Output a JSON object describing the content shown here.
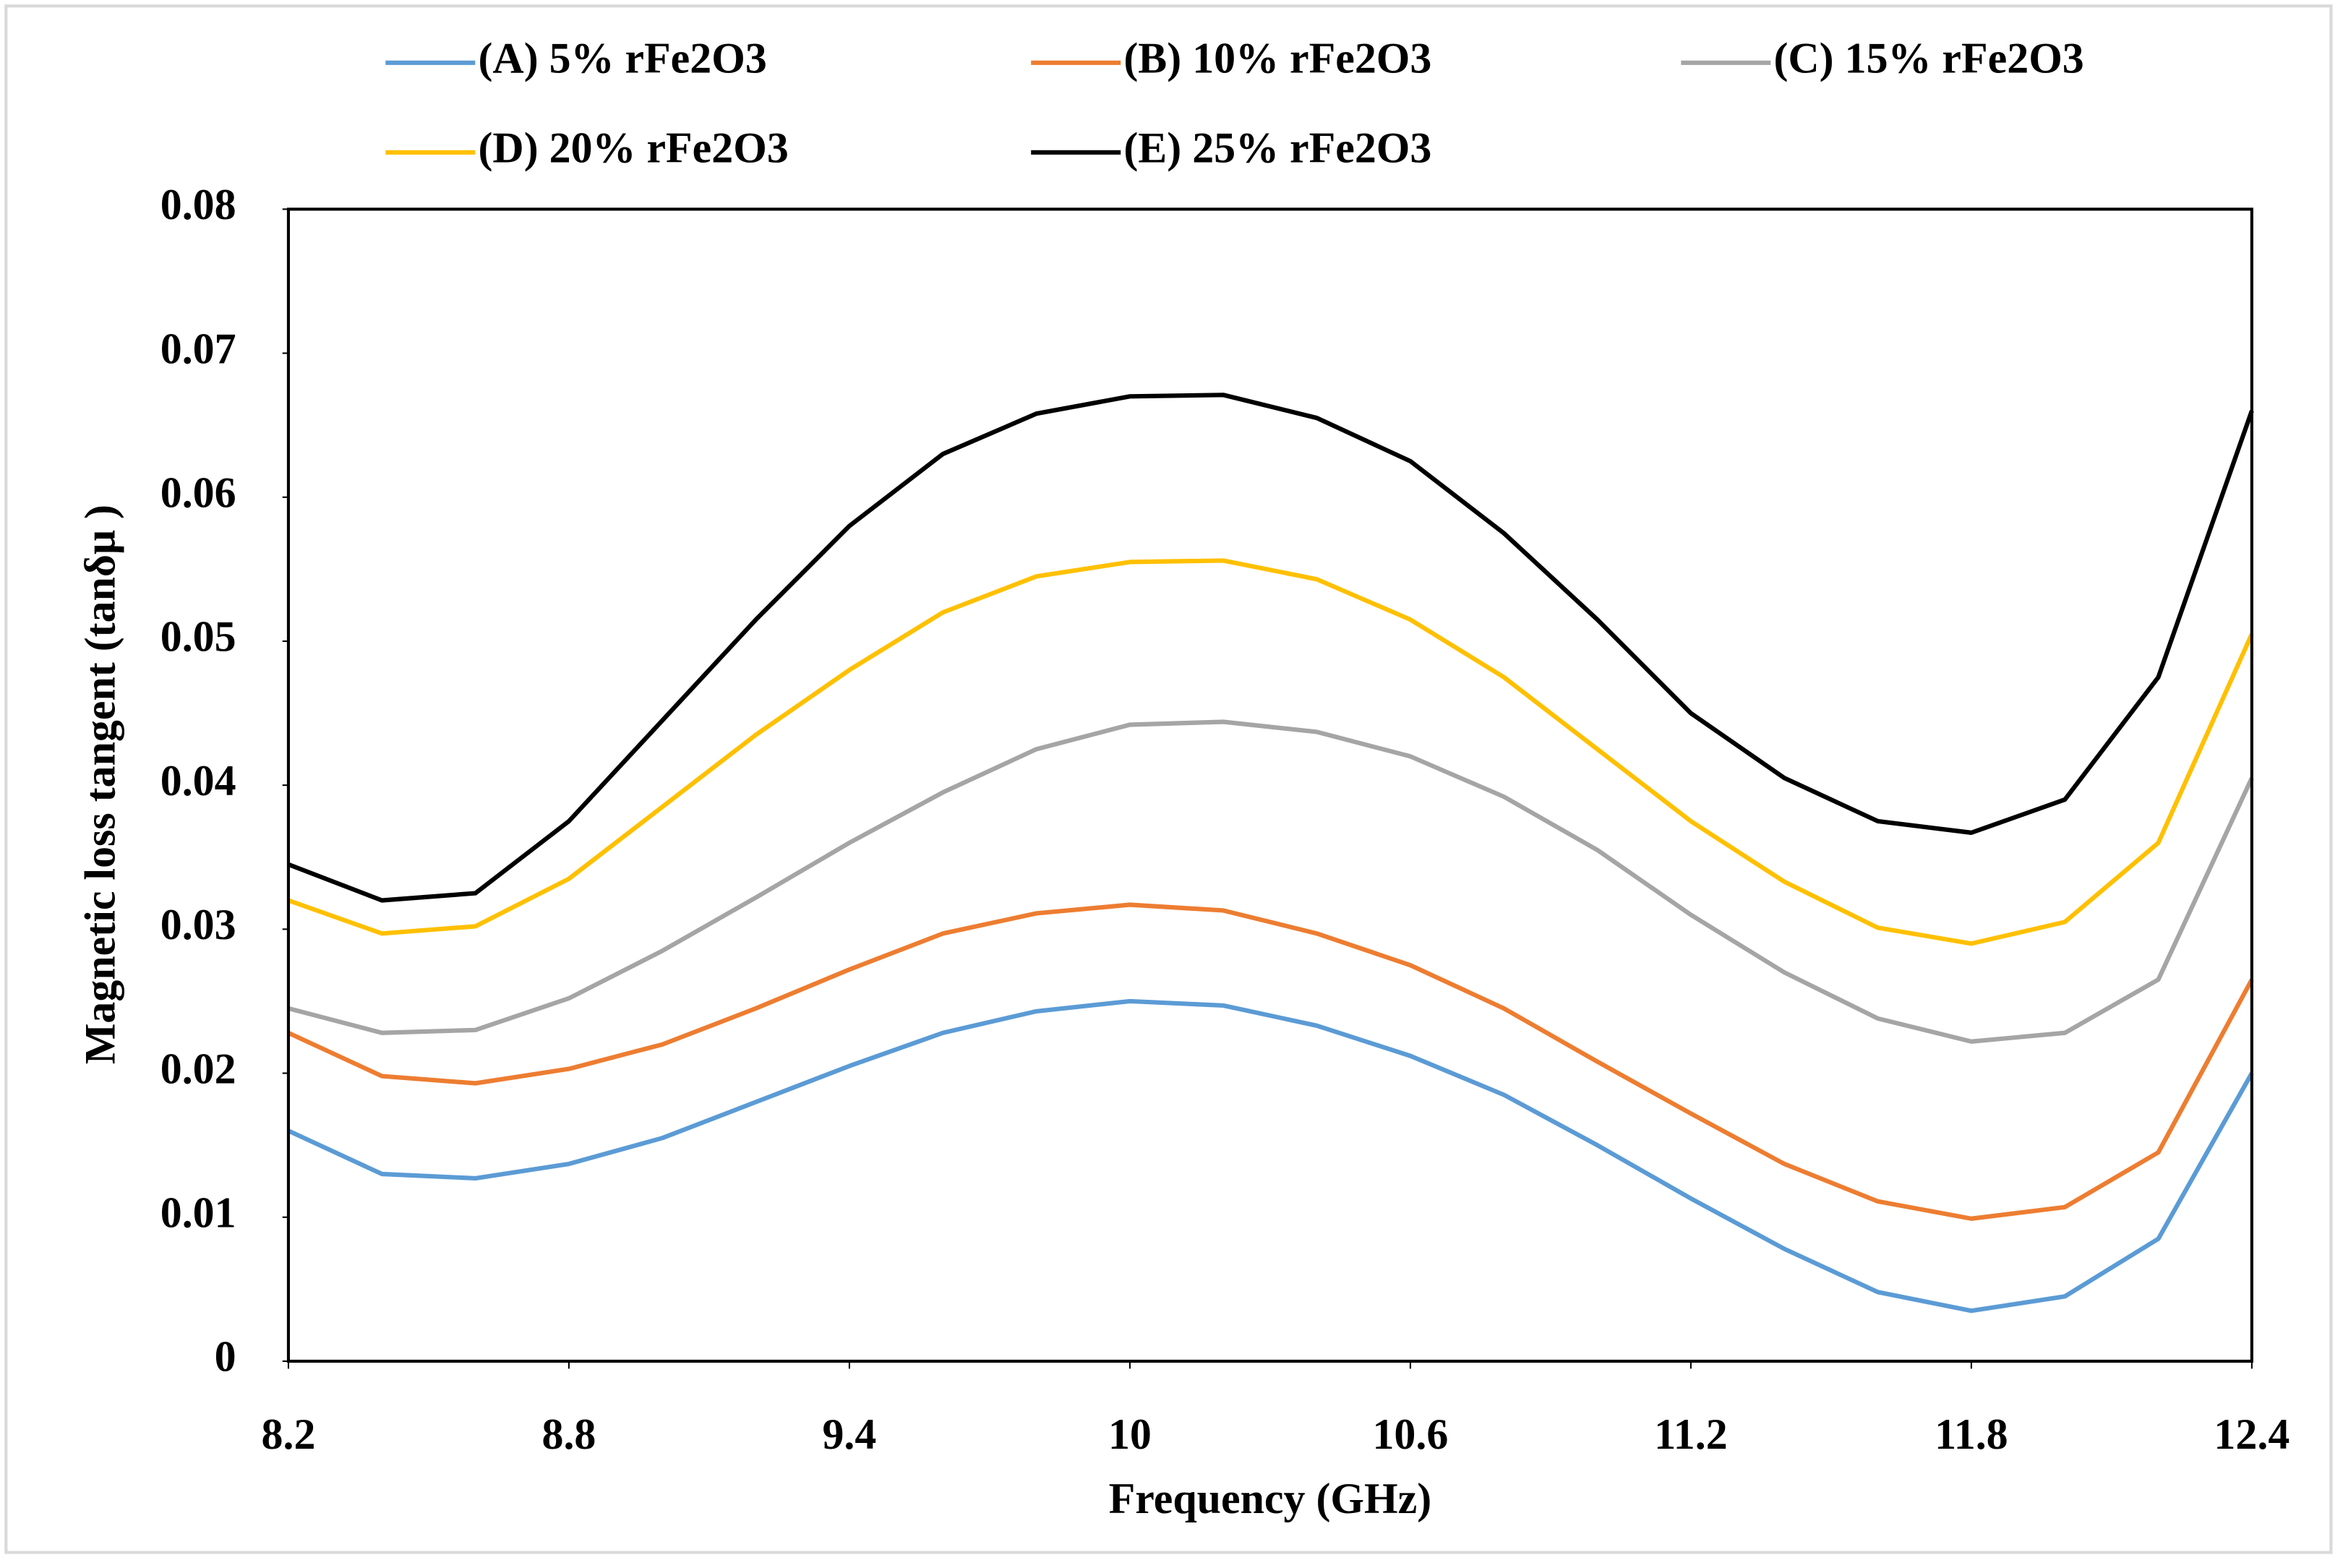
{
  "chart_data": {
    "type": "line",
    "x_label": "Frequency (GHz)",
    "y_label": "Magnetic loss tangent (tanδμ )",
    "x": [
      8.2,
      8.4,
      8.6,
      8.8,
      9.0,
      9.2,
      9.4,
      9.6,
      9.8,
      10.0,
      10.2,
      10.4,
      10.6,
      10.8,
      11.0,
      11.2,
      11.4,
      11.6,
      11.8,
      12.0,
      12.2,
      12.4
    ],
    "xlim": [
      8.2,
      12.4
    ],
    "xticks": [
      8.2,
      8.8,
      9.4,
      10,
      10.6,
      11.2,
      11.8,
      12.4
    ],
    "ylim": [
      0,
      0.08
    ],
    "yticks": [
      0,
      0.01,
      0.02,
      0.03,
      0.04,
      0.05,
      0.06,
      0.07,
      0.08
    ],
    "grid": false,
    "legend": "top",
    "series": [
      {
        "name": "(A) 5% rFe2O3",
        "color": "#5b9bd5",
        "values": [
          0.016,
          0.013,
          0.0127,
          0.0137,
          0.0155,
          0.018,
          0.0205,
          0.0228,
          0.0243,
          0.025,
          0.0247,
          0.0233,
          0.0212,
          0.0185,
          0.015,
          0.0113,
          0.0078,
          0.0048,
          0.0035,
          0.0045,
          0.0085,
          0.02
        ]
      },
      {
        "name": "(B) 10% rFe2O3",
        "color": "#ed7d31",
        "values": [
          0.0228,
          0.0198,
          0.0193,
          0.0203,
          0.022,
          0.0245,
          0.0272,
          0.0297,
          0.0311,
          0.0317,
          0.0313,
          0.0297,
          0.0275,
          0.0245,
          0.0208,
          0.0172,
          0.0137,
          0.0111,
          0.0099,
          0.0107,
          0.0145,
          0.0265
        ]
      },
      {
        "name": "(C) 15% rFe2O3",
        "color": "#a5a5a5",
        "values": [
          0.0245,
          0.0228,
          0.023,
          0.0252,
          0.0285,
          0.0322,
          0.036,
          0.0395,
          0.0425,
          0.0442,
          0.0444,
          0.0437,
          0.042,
          0.0392,
          0.0355,
          0.031,
          0.027,
          0.0238,
          0.0222,
          0.0228,
          0.0265,
          0.0405
        ]
      },
      {
        "name": "(D) 20% rFe2O3",
        "color": "#ffc000",
        "values": [
          0.032,
          0.0297,
          0.0302,
          0.0335,
          0.0385,
          0.0435,
          0.048,
          0.052,
          0.0545,
          0.0555,
          0.0556,
          0.0543,
          0.0515,
          0.0475,
          0.0425,
          0.0375,
          0.0333,
          0.0301,
          0.029,
          0.0305,
          0.036,
          0.0505
        ]
      },
      {
        "name": "(E) 25% rFe2O3",
        "color": "#000000",
        "values": [
          0.0345,
          0.032,
          0.0325,
          0.0375,
          0.0445,
          0.0515,
          0.058,
          0.063,
          0.0658,
          0.067,
          0.0671,
          0.0655,
          0.0625,
          0.0575,
          0.0515,
          0.045,
          0.0405,
          0.0375,
          0.0367,
          0.039,
          0.0475,
          0.066
        ]
      }
    ]
  }
}
